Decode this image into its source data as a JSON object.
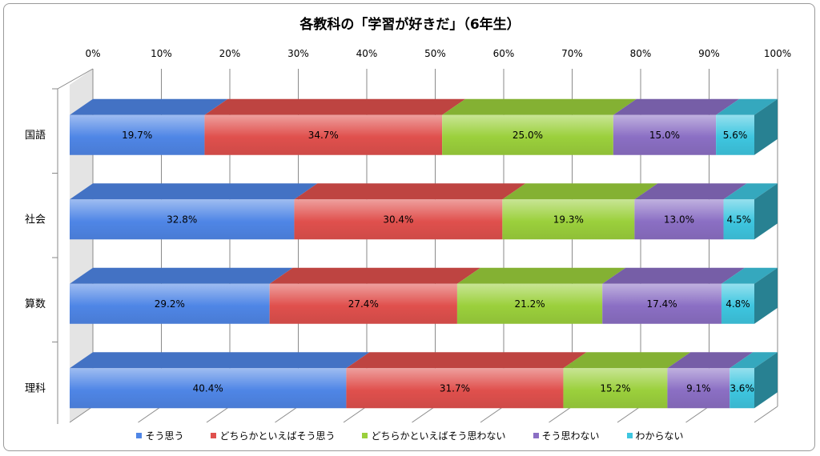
{
  "chart_data": {
    "type": "bar",
    "orientation": "horizontal",
    "stacked": "percent",
    "three_d": true,
    "title": "各教科の「学習が好きだ」（6年生）",
    "categories": [
      "国語",
      "社会",
      "算数",
      "理科"
    ],
    "x_ticks": [
      "0%",
      "10%",
      "20%",
      "30%",
      "40%",
      "50%",
      "60%",
      "70%",
      "80%",
      "90%",
      "100%"
    ],
    "xlim": [
      0,
      100
    ],
    "grid": "vertical",
    "legend_position": "bottom",
    "series": [
      {
        "name": "そう思う",
        "color": "#4f86e6",
        "values": [
          19.7,
          32.8,
          29.2,
          40.4
        ],
        "labels": [
          "19.7%",
          "32.8%",
          "29.2%",
          "40.4%"
        ]
      },
      {
        "name": "どちらかといえばそう思う",
        "color": "#e0504d",
        "values": [
          34.7,
          30.4,
          27.4,
          31.7
        ],
        "labels": [
          "34.7%",
          "30.4%",
          "27.4%",
          "31.7%"
        ]
      },
      {
        "name": "どちらかといえばそう思わない",
        "color": "#9bd03c",
        "values": [
          25.0,
          19.3,
          21.2,
          15.2
        ],
        "labels": [
          "25.0%",
          "19.3%",
          "21.2%",
          "15.2%"
        ]
      },
      {
        "name": "そう思わない",
        "color": "#8b6fc4",
        "values": [
          15.0,
          13.0,
          17.4,
          9.1
        ],
        "labels": [
          "15.0%",
          "13.0%",
          "17.4%",
          "9.1%"
        ]
      },
      {
        "name": "わからない",
        "color": "#3ec6e0",
        "values": [
          5.6,
          4.5,
          4.8,
          3.6
        ],
        "labels": [
          "5.6%",
          "4.5%",
          "4.8%",
          "3.6%"
        ]
      }
    ]
  }
}
